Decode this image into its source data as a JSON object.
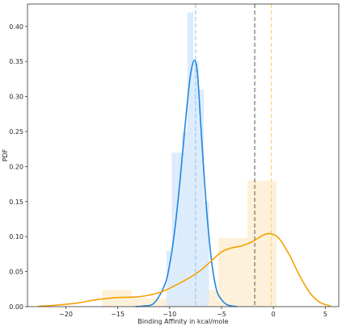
{
  "chart_data": {
    "type": "histogram_kde",
    "title": "",
    "xlabel": "Binding Affinity in kcal/mole",
    "ylabel": "PDF",
    "xlim": [
      -23.7,
      6.3
    ],
    "ylim": [
      0,
      0.432
    ],
    "xticks": [
      -20,
      -15,
      -10,
      -5,
      0,
      5
    ],
    "yticks": [
      0.0,
      0.05,
      0.1,
      0.15,
      0.2,
      0.25,
      0.3,
      0.35,
      0.4
    ],
    "grid": false,
    "legend": "none",
    "colors": {
      "blue_line": "#1f86e0",
      "blue_fill": "#d7e9fb",
      "orange_line": "#f5a100",
      "orange_fill": "#fdefd6",
      "black_dashed": "#555555",
      "blue_dashed": "#8cc4e8",
      "orange_dashed": "#ffcc66",
      "axis": "#333333"
    },
    "series": [
      {
        "kind": "histogram",
        "color": "blue",
        "bins": [
          {
            "x0": -10.3,
            "x1": -9.8,
            "y": 0.08
          },
          {
            "x0": -9.8,
            "x1": -9.3,
            "y": 0.22
          },
          {
            "x0": -9.3,
            "x1": -8.8,
            "y": 0.22
          },
          {
            "x0": -8.8,
            "x1": -8.3,
            "y": 0.25
          },
          {
            "x0": -8.3,
            "x1": -7.7,
            "y": 0.42
          },
          {
            "x0": -7.7,
            "x1": -7.2,
            "y": 0.35
          },
          {
            "x0": -7.2,
            "x1": -6.7,
            "y": 0.31
          },
          {
            "x0": -6.7,
            "x1": -6.2,
            "y": 0.15
          }
        ]
      },
      {
        "kind": "histogram",
        "color": "orange",
        "bins": [
          {
            "x0": -16.5,
            "x1": -13.7,
            "y": 0.024
          },
          {
            "x0": -13.7,
            "x1": -10.9,
            "y": 0.012
          },
          {
            "x0": -10.9,
            "x1": -8.1,
            "y": 0.012
          },
          {
            "x0": -8.1,
            "x1": -5.3,
            "y": 0.024
          },
          {
            "x0": -5.3,
            "x1": -2.5,
            "y": 0.098
          },
          {
            "x0": -2.5,
            "x1": 0.3,
            "y": 0.18
          }
        ]
      },
      {
        "kind": "kde",
        "color": "blue",
        "points": [
          [
            -13.3,
            0
          ],
          [
            -12.5,
            0.001
          ],
          [
            -11.5,
            0.005
          ],
          [
            -10.5,
            0.03
          ],
          [
            -10.0,
            0.06
          ],
          [
            -9.5,
            0.11
          ],
          [
            -9.0,
            0.18
          ],
          [
            -8.5,
            0.26
          ],
          [
            -8.0,
            0.33
          ],
          [
            -7.6,
            0.352
          ],
          [
            -7.3,
            0.33
          ],
          [
            -7.0,
            0.26
          ],
          [
            -6.5,
            0.15
          ],
          [
            -6.0,
            0.07
          ],
          [
            -5.5,
            0.025
          ],
          [
            -5.0,
            0.01
          ],
          [
            -4.5,
            0.003
          ],
          [
            -4.0,
            0.001
          ],
          [
            -3.5,
            0
          ]
        ]
      },
      {
        "kind": "kde",
        "color": "orange",
        "points": [
          [
            -22.7,
            0.0005
          ],
          [
            -21,
            0.002
          ],
          [
            -19,
            0.005
          ],
          [
            -17,
            0.01
          ],
          [
            -15,
            0.013
          ],
          [
            -13,
            0.014
          ],
          [
            -11,
            0.02
          ],
          [
            -9.5,
            0.03
          ],
          [
            -8,
            0.042
          ],
          [
            -7,
            0.052
          ],
          [
            -6,
            0.065
          ],
          [
            -5,
            0.078
          ],
          [
            -4,
            0.084
          ],
          [
            -3,
            0.087
          ],
          [
            -2,
            0.093
          ],
          [
            -1,
            0.102
          ],
          [
            -0.3,
            0.104
          ],
          [
            0.5,
            0.098
          ],
          [
            1.5,
            0.075
          ],
          [
            2.5,
            0.045
          ],
          [
            3.5,
            0.02
          ],
          [
            4.5,
            0.006
          ],
          [
            5.5,
            0.001
          ]
        ]
      }
    ],
    "vlines": [
      {
        "x": -7.5,
        "color": "blue",
        "style": "dashed"
      },
      {
        "x": -1.8,
        "color": "black",
        "style": "dashed"
      },
      {
        "x": -0.2,
        "color": "orange",
        "style": "dashed"
      }
    ]
  }
}
